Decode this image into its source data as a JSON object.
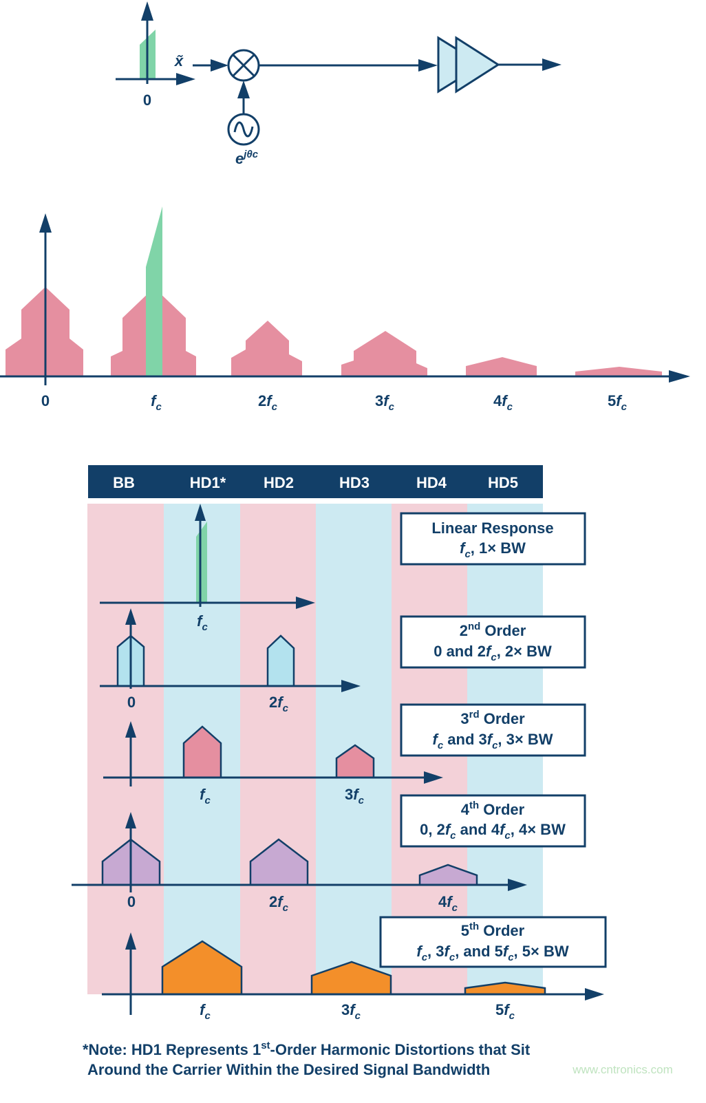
{
  "colors": {
    "navy": "#123f68",
    "pink": "#e58fa0",
    "pink_band": "#f3d1d8",
    "blue_band": "#cdeaf2",
    "green": "#80d4a8",
    "light_blue": "#b3e2ee",
    "purple": "#c7a9d2",
    "orange": "#f38f2a"
  },
  "block_diagram": {
    "input_label": [
      {
        "t": "x̃",
        "i": true
      }
    ],
    "input_axis_zero": [
      {
        "t": "0"
      }
    ],
    "oscillator_label": [
      {
        "t": "e",
        "i": true
      },
      {
        "t": "jθ",
        "i": true,
        "sup": true
      },
      {
        "t": "c",
        "i": true,
        "sup": true
      }
    ],
    "components": [
      "mixer-icon",
      "oscillator-icon",
      "amplifier-icon"
    ]
  },
  "spectrum": {
    "labels": [
      [
        {
          "t": "0"
        }
      ],
      [
        {
          "t": "f",
          "i": true
        },
        {
          "t": "c",
          "i": true,
          "sub": true
        }
      ],
      [
        {
          "t": "2"
        },
        {
          "t": "f",
          "i": true
        },
        {
          "t": "c",
          "i": true,
          "sub": true
        }
      ],
      [
        {
          "t": "3"
        },
        {
          "t": "f",
          "i": true
        },
        {
          "t": "c",
          "i": true,
          "sub": true
        }
      ],
      [
        {
          "t": "4"
        },
        {
          "t": "f",
          "i": true
        },
        {
          "t": "c",
          "i": true,
          "sub": true
        }
      ],
      [
        {
          "t": "5"
        },
        {
          "t": "f",
          "i": true
        },
        {
          "t": "c",
          "i": true,
          "sub": true
        }
      ]
    ]
  },
  "bands": {
    "headers": [
      "BB",
      "HD1*",
      "HD2",
      "HD3",
      "HD4",
      "HD5"
    ]
  },
  "rows": [
    {
      "title": [
        {
          "t": "Linear Response"
        }
      ],
      "subtitle": [
        {
          "t": "f",
          "i": true
        },
        {
          "t": "c",
          "i": true,
          "sub": true
        },
        {
          "t": ", 1× BW"
        }
      ],
      "labels": [
        [
          {
            "t": "f",
            "i": true
          },
          {
            "t": "c",
            "i": true,
            "sub": true
          }
        ]
      ]
    },
    {
      "title": [
        {
          "t": "2"
        },
        {
          "t": "nd",
          "sup": true
        },
        {
          "t": " Order"
        }
      ],
      "subtitle": [
        {
          "t": "0 and 2"
        },
        {
          "t": "f",
          "i": true
        },
        {
          "t": "c",
          "i": true,
          "sub": true
        },
        {
          "t": ", 2× BW"
        }
      ],
      "labels": [
        [
          {
            "t": "0"
          }
        ],
        [
          {
            "t": "2"
          },
          {
            "t": "f",
            "i": true
          },
          {
            "t": "c",
            "i": true,
            "sub": true
          }
        ]
      ]
    },
    {
      "title": [
        {
          "t": "3"
        },
        {
          "t": "rd",
          "sup": true
        },
        {
          "t": " Order"
        }
      ],
      "subtitle": [
        {
          "t": "f",
          "i": true
        },
        {
          "t": "c",
          "i": true,
          "sub": true
        },
        {
          "t": " and 3"
        },
        {
          "t": "f",
          "i": true
        },
        {
          "t": "c",
          "i": true,
          "sub": true
        },
        {
          "t": ", 3× BW"
        }
      ],
      "labels": [
        [
          {
            "t": "f",
            "i": true
          },
          {
            "t": "c",
            "i": true,
            "sub": true
          }
        ],
        [
          {
            "t": "3"
          },
          {
            "t": "f",
            "i": true
          },
          {
            "t": "c",
            "i": true,
            "sub": true
          }
        ]
      ]
    },
    {
      "title": [
        {
          "t": "4"
        },
        {
          "t": "th",
          "sup": true
        },
        {
          "t": " Order"
        }
      ],
      "subtitle": [
        {
          "t": "0, 2"
        },
        {
          "t": "f",
          "i": true
        },
        {
          "t": "c",
          "i": true,
          "sub": true
        },
        {
          "t": " and 4"
        },
        {
          "t": "f",
          "i": true
        },
        {
          "t": "c",
          "i": true,
          "sub": true
        },
        {
          "t": ", 4× BW"
        }
      ],
      "labels": [
        [
          {
            "t": "0"
          }
        ],
        [
          {
            "t": "2"
          },
          {
            "t": "f",
            "i": true
          },
          {
            "t": "c",
            "i": true,
            "sub": true
          }
        ],
        [
          {
            "t": "4"
          },
          {
            "t": "f",
            "i": true
          },
          {
            "t": "c",
            "i": true,
            "sub": true
          }
        ]
      ]
    },
    {
      "title": [
        {
          "t": "5"
        },
        {
          "t": "th",
          "sup": true
        },
        {
          "t": " Order"
        }
      ],
      "subtitle": [
        {
          "t": "f",
          "i": true
        },
        {
          "t": "c",
          "i": true,
          "sub": true
        },
        {
          "t": ", 3"
        },
        {
          "t": "f",
          "i": true
        },
        {
          "t": "c",
          "i": true,
          "sub": true
        },
        {
          "t": ", and 5"
        },
        {
          "t": "f",
          "i": true
        },
        {
          "t": "c",
          "i": true,
          "sub": true
        },
        {
          "t": ", 5× BW"
        }
      ],
      "labels": [
        [
          {
            "t": "f",
            "i": true
          },
          {
            "t": "c",
            "i": true,
            "sub": true
          }
        ],
        [
          {
            "t": "3"
          },
          {
            "t": "f",
            "i": true
          },
          {
            "t": "c",
            "i": true,
            "sub": true
          }
        ],
        [
          {
            "t": "5"
          },
          {
            "t": "f",
            "i": true
          },
          {
            "t": "c",
            "i": true,
            "sub": true
          }
        ]
      ]
    }
  ],
  "note": {
    "line1": [
      {
        "t": "*Note: HD1 Represents 1"
      },
      {
        "t": "st",
        "sup": true
      },
      {
        "t": "-Order Harmonic Distortions that Sit"
      }
    ],
    "line2": [
      {
        "t": "Around the Carrier Within the Desired Signal Bandwidth"
      }
    ]
  },
  "watermark": "www.cntronics.com"
}
